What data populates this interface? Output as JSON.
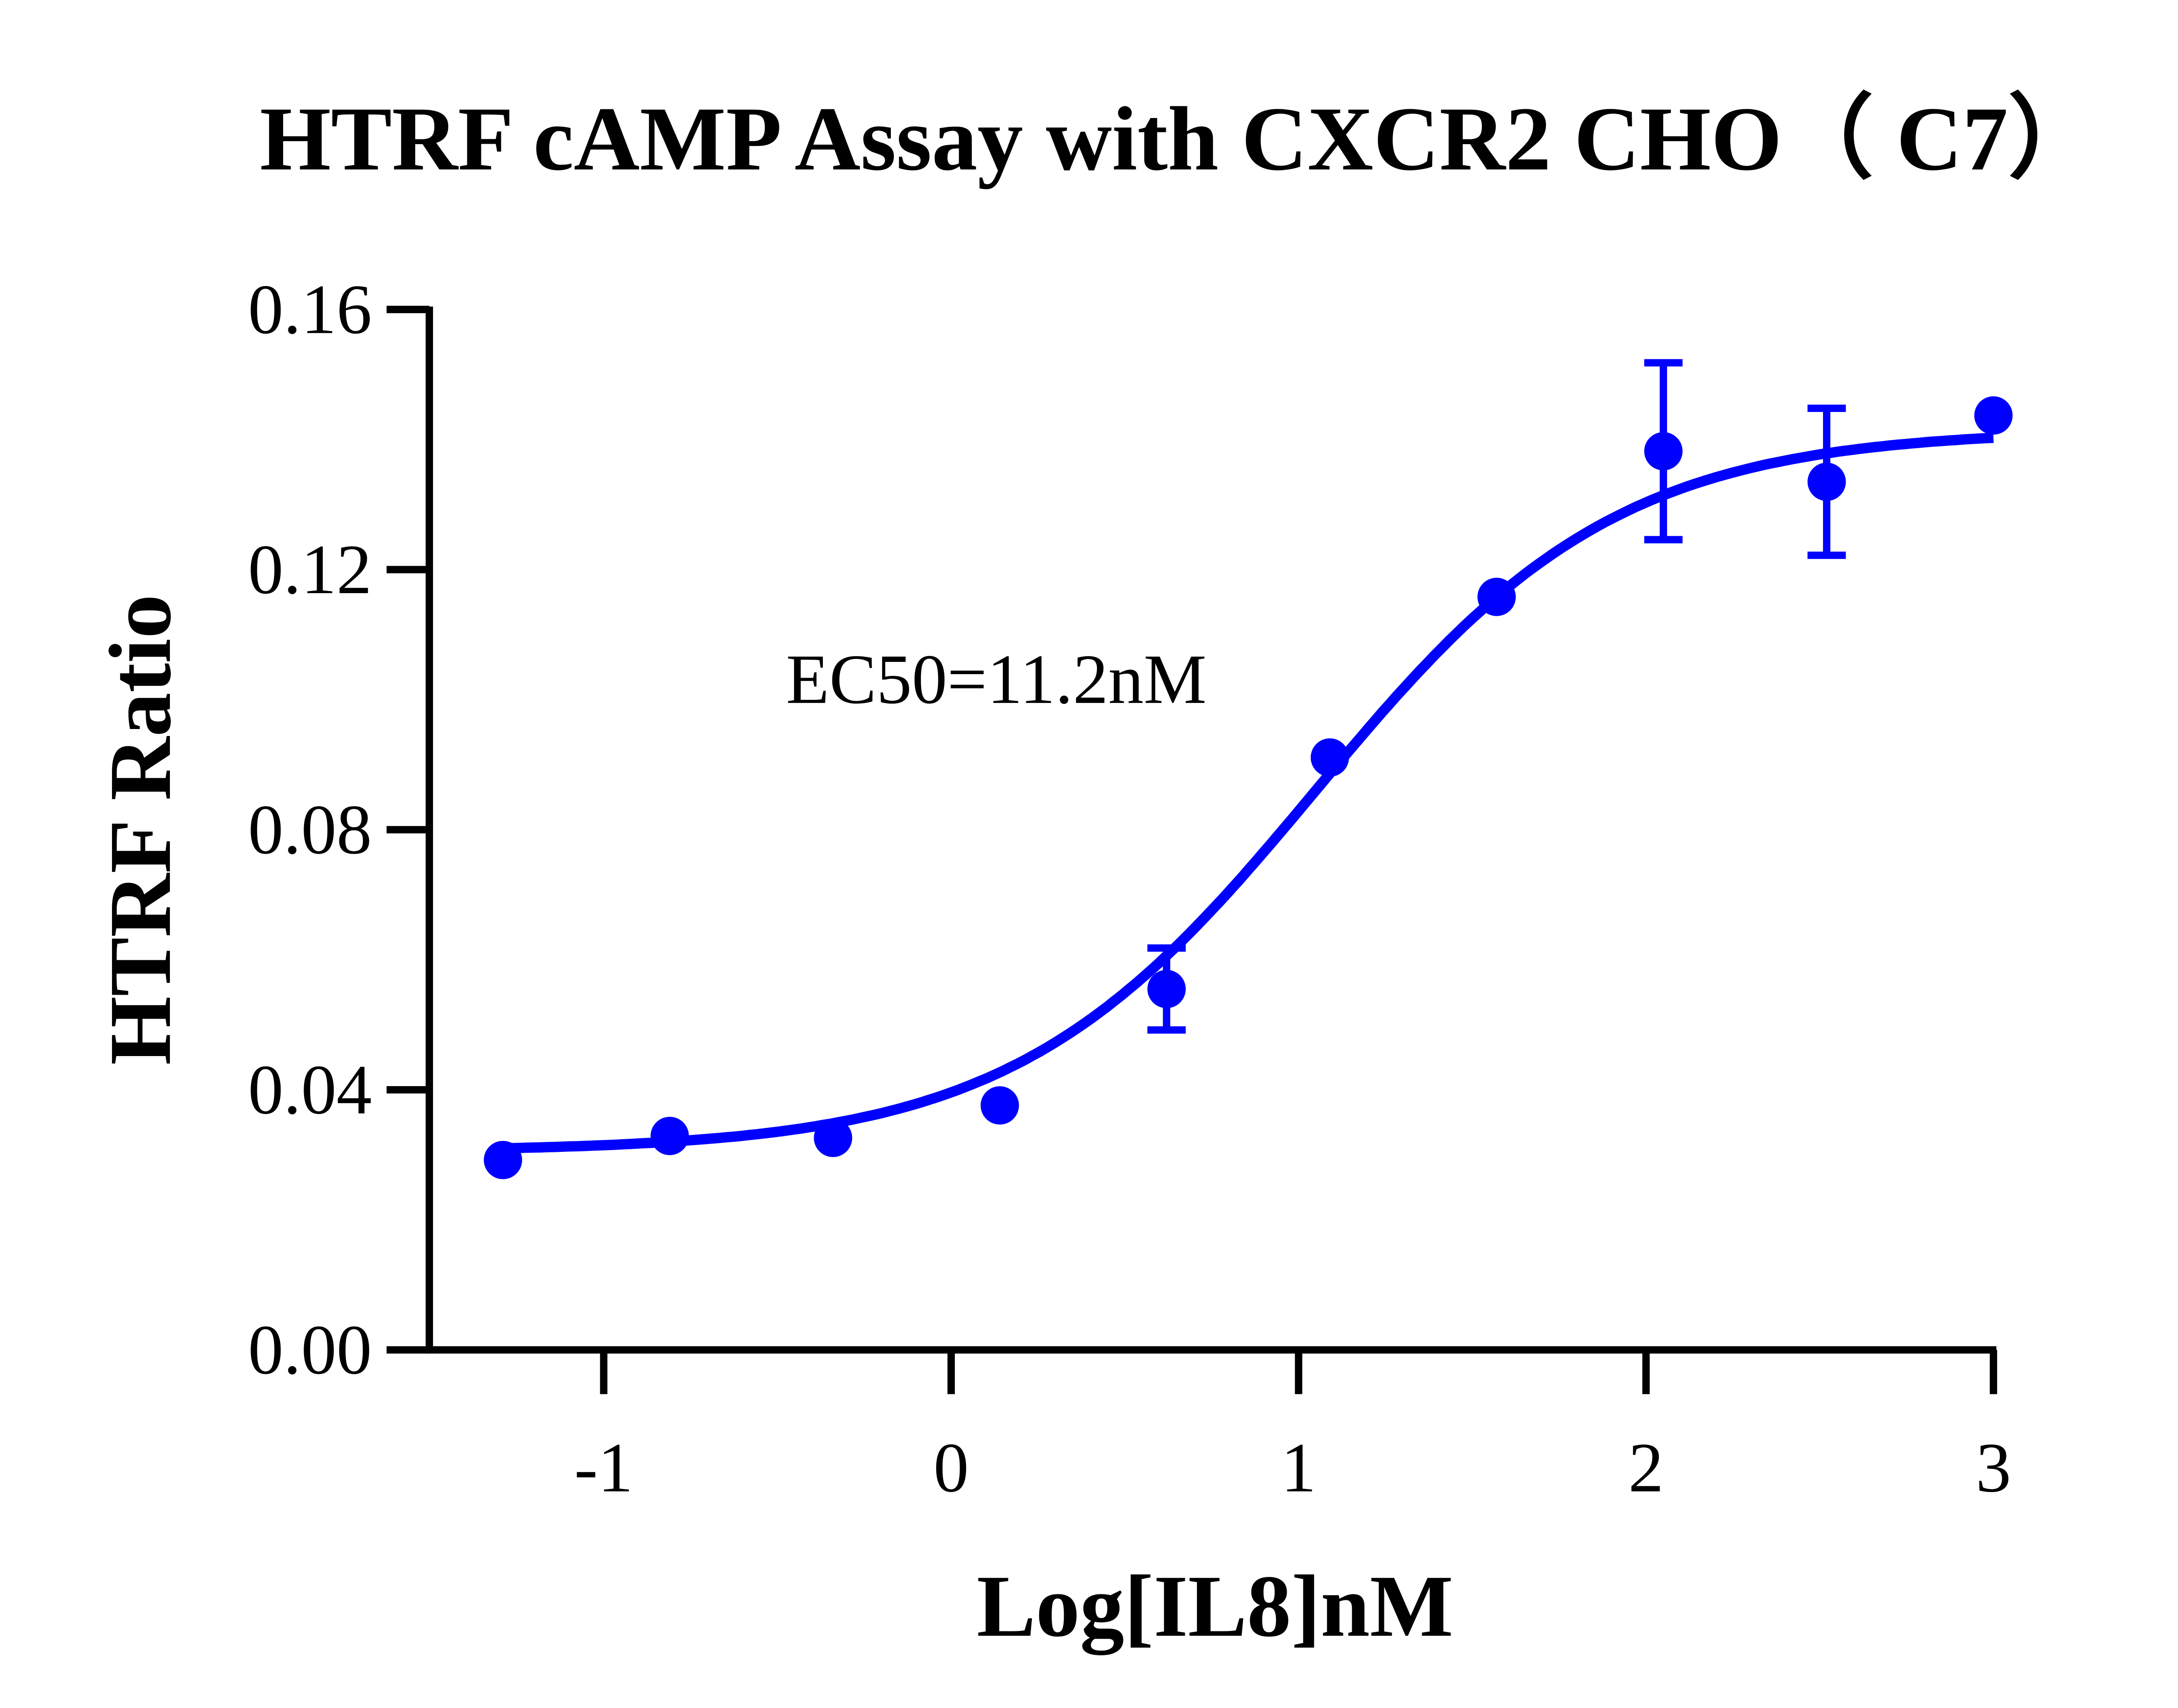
{
  "chart_data": {
    "type": "scatter",
    "title": "HTRF cAMP Assay with CXCR2 CHO（ C7）",
    "xlabel": "Log[IL8]nM",
    "ylabel": "HTRF Ratio",
    "xlim": [
      -1.4,
      3.0
    ],
    "ylim": [
      0,
      0.16
    ],
    "xticks": [
      -1,
      0,
      1,
      2,
      3
    ],
    "xtick_labels": [
      "-1",
      "0",
      "1",
      "2",
      "3"
    ],
    "yticks": [
      0,
      0.04,
      0.08,
      0.12,
      0.16
    ],
    "ytick_labels": [
      "0.00",
      "0.04",
      "0.08",
      "0.12",
      "0.16"
    ],
    "grid": false,
    "color": "#0000FF",
    "annotation": "EC50=11.2nM",
    "points": {
      "x": [
        -1.29,
        -0.81,
        -0.34,
        0.14,
        0.62,
        1.09,
        1.57,
        2.05,
        2.52,
        3.0
      ],
      "y": [
        0.0292,
        0.0329,
        0.0326,
        0.0376,
        0.0555,
        0.0911,
        0.1158,
        0.1382,
        0.1335,
        0.1437
      ],
      "error": [
        0,
        0,
        0,
        0,
        0.0063,
        0,
        0,
        0.0136,
        0.0113,
        0
      ]
    },
    "fit": {
      "model": "sigmoidal dose-response",
      "bottom": 0.0305,
      "top": 0.1415,
      "logEC50": 1.049,
      "hill": 1.0
    }
  }
}
